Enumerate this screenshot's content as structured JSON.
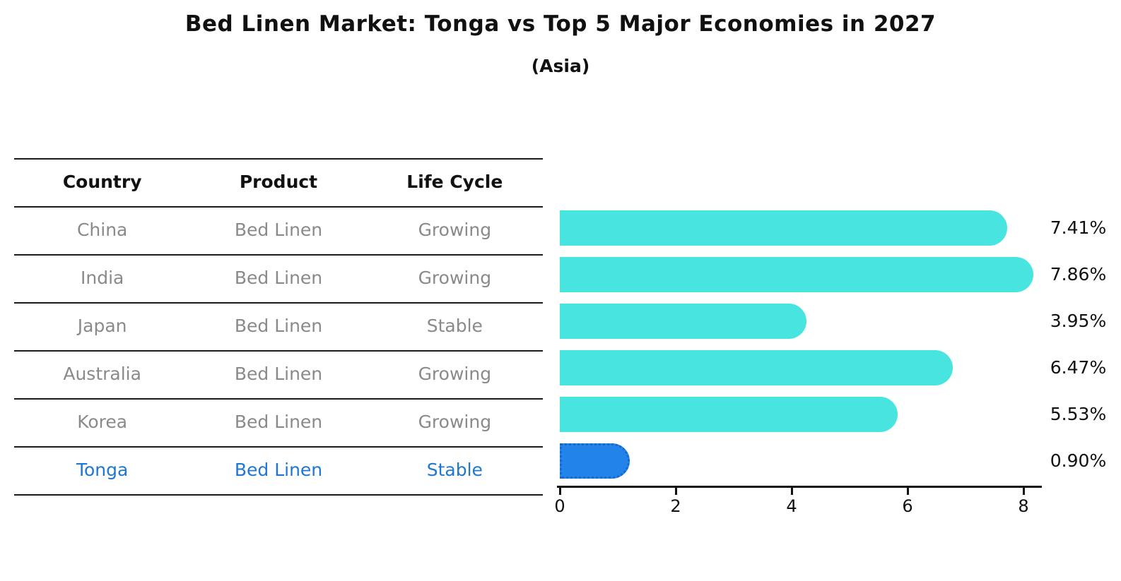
{
  "header": {
    "title": "Bed Linen Market: Tonga vs Top 5 Major Economies in 2027",
    "subtitle": "(Asia)"
  },
  "table": {
    "headers": [
      "Country",
      "Product",
      "Life Cycle"
    ],
    "rows": [
      {
        "country": "China",
        "product": "Bed Linen",
        "life_cycle": "Growing",
        "highlighted": false
      },
      {
        "country": "India",
        "product": "Bed Linen",
        "life_cycle": "Growing",
        "highlighted": false
      },
      {
        "country": "Japan",
        "product": "Bed Linen",
        "life_cycle": "Stable",
        "highlighted": false
      },
      {
        "country": "Australia",
        "product": "Bed Linen",
        "life_cycle": "Growing",
        "highlighted": false
      },
      {
        "country": "Korea",
        "product": "Bed Linen",
        "life_cycle": "Growing",
        "highlighted": false
      },
      {
        "country": "Tonga",
        "product": "Bed Linen",
        "life_cycle": "Stable",
        "highlighted": true
      }
    ],
    "text_color": "#8a8a8a",
    "header_color": "#111111",
    "highlight_text_color": "#1F77D4"
  },
  "chart_data": {
    "type": "bar",
    "orientation": "horizontal",
    "title": "Bed Linen Market: Tonga vs Top 5 Major Economies in 2027",
    "subtitle": "(Asia)",
    "categories": [
      "China",
      "India",
      "Japan",
      "Australia",
      "Korea",
      "Tonga"
    ],
    "values": [
      7.41,
      7.86,
      3.95,
      6.47,
      5.53,
      0.9
    ],
    "value_labels": [
      "7.41%",
      "7.86%",
      "3.95%",
      "6.47%",
      "5.53%",
      "0.90%"
    ],
    "xlabel": "",
    "ylabel": "",
    "xlim": [
      0,
      8.4
    ],
    "x_ticks": [
      0,
      2,
      4,
      6,
      8
    ],
    "grid": false,
    "legend": false,
    "bar_color": "#48E5E0",
    "highlight_bar_color": "#2283E8",
    "highlight_border_color": "#1668cf",
    "highlight_index": 5,
    "highlight_border_style": "dotted"
  }
}
